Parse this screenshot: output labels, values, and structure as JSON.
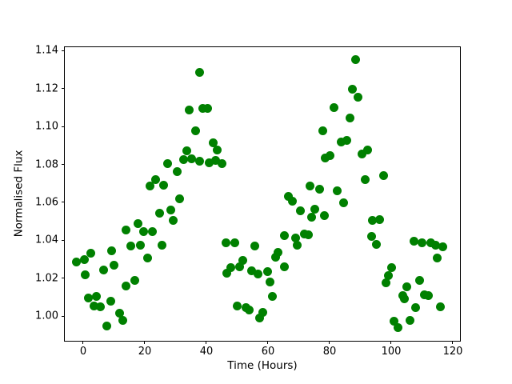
{
  "chart_data": {
    "type": "scatter",
    "title": "",
    "xlabel": "Time (Hours)",
    "ylabel": "Normalised Flux",
    "legend": null,
    "grid": false,
    "marker_color": "#008000",
    "marker_size_px": 11,
    "xlim": [
      -5.97,
      122.86
    ],
    "ylim": [
      0.9861,
      1.1421
    ],
    "x_ticks": [
      {
        "value": 0,
        "label": "0"
      },
      {
        "value": 20,
        "label": "20"
      },
      {
        "value": 40,
        "label": "40"
      },
      {
        "value": 60,
        "label": "60"
      },
      {
        "value": 80,
        "label": "80"
      },
      {
        "value": 100,
        "label": "100"
      },
      {
        "value": 120,
        "label": "120"
      }
    ],
    "y_ticks": [
      {
        "value": 1.0,
        "label": "1.00"
      },
      {
        "value": 1.02,
        "label": "1.02"
      },
      {
        "value": 1.04,
        "label": "1.04"
      },
      {
        "value": 1.06,
        "label": "1.06"
      },
      {
        "value": 1.08,
        "label": "1.08"
      },
      {
        "value": 1.1,
        "label": "1.10"
      },
      {
        "value": 1.12,
        "label": "1.12"
      },
      {
        "value": 1.14,
        "label": "1.14"
      }
    ],
    "points": [
      [
        -2.1,
        1.0285
      ],
      [
        0.4,
        1.0296
      ],
      [
        0.7,
        1.0216
      ],
      [
        1.7,
        1.0095
      ],
      [
        2.4,
        1.033
      ],
      [
        3.5,
        1.0055
      ],
      [
        4.4,
        1.0105
      ],
      [
        5.5,
        1.0049
      ],
      [
        6.6,
        1.0243
      ],
      [
        7.6,
        0.9947
      ],
      [
        9.0,
        1.0077
      ],
      [
        9.3,
        1.0346
      ],
      [
        10.1,
        1.027
      ],
      [
        11.7,
        1.0014
      ],
      [
        12.9,
        0.9979
      ],
      [
        13.8,
        1.0454
      ],
      [
        14.0,
        1.016
      ],
      [
        15.4,
        1.0371
      ],
      [
        16.7,
        1.019
      ],
      [
        17.8,
        1.0489
      ],
      [
        18.7,
        1.0374
      ],
      [
        19.6,
        1.0447
      ],
      [
        20.9,
        1.0306
      ],
      [
        21.6,
        1.0685
      ],
      [
        22.6,
        1.0447
      ],
      [
        23.5,
        1.0722
      ],
      [
        24.8,
        1.0541
      ],
      [
        25.5,
        1.0376
      ],
      [
        26.1,
        1.069
      ],
      [
        27.3,
        1.0806
      ],
      [
        28.5,
        1.0559
      ],
      [
        29.3,
        1.0503
      ],
      [
        30.4,
        1.0764
      ],
      [
        31.4,
        1.0619
      ],
      [
        32.7,
        1.0826
      ],
      [
        33.6,
        1.0872
      ],
      [
        34.3,
        1.1087
      ],
      [
        35.2,
        1.0831
      ],
      [
        36.4,
        1.0977
      ],
      [
        37.7,
        1.0816
      ],
      [
        37.8,
        1.1288
      ],
      [
        38.9,
        1.1096
      ],
      [
        40.3,
        1.1098
      ],
      [
        40.8,
        1.0809
      ],
      [
        42.1,
        1.0915
      ],
      [
        42.9,
        1.082
      ],
      [
        43.5,
        1.0876
      ],
      [
        45.1,
        1.0806
      ],
      [
        46.3,
        1.0386
      ],
      [
        46.6,
        1.0226
      ],
      [
        47.9,
        1.0257
      ],
      [
        49.1,
        1.0386
      ],
      [
        50.0,
        1.0053
      ],
      [
        50.7,
        1.026
      ],
      [
        51.9,
        1.0292
      ],
      [
        52.8,
        1.0046
      ],
      [
        53.9,
        1.0032
      ],
      [
        54.6,
        1.024
      ],
      [
        55.7,
        1.0368
      ],
      [
        56.8,
        1.0222
      ],
      [
        57.4,
        0.999
      ],
      [
        58.3,
        1.0021
      ],
      [
        60.0,
        1.0236
      ],
      [
        60.7,
        1.018
      ],
      [
        61.5,
        1.0103
      ],
      [
        62.6,
        1.0311
      ],
      [
        63.3,
        1.0335
      ],
      [
        65.2,
        1.026
      ],
      [
        65.2,
        1.0423
      ],
      [
        66.7,
        1.063
      ],
      [
        68.0,
        1.0605
      ],
      [
        68.9,
        1.0412
      ],
      [
        69.6,
        1.0373
      ],
      [
        70.4,
        1.0555
      ],
      [
        71.9,
        1.0433
      ],
      [
        73.2,
        1.0429
      ],
      [
        73.7,
        1.0686
      ],
      [
        74.2,
        1.052
      ],
      [
        75.3,
        1.0564
      ],
      [
        76.7,
        1.0668
      ],
      [
        77.8,
        1.0979
      ],
      [
        78.4,
        1.053
      ],
      [
        78.6,
        1.0835
      ],
      [
        80.2,
        1.0845
      ],
      [
        81.5,
        1.1101
      ],
      [
        82.5,
        1.0662
      ],
      [
        83.8,
        1.092
      ],
      [
        84.5,
        1.0598
      ],
      [
        85.5,
        1.0928
      ],
      [
        86.5,
        1.1045
      ],
      [
        87.5,
        1.1199
      ],
      [
        88.4,
        1.1352
      ],
      [
        89.3,
        1.1157
      ],
      [
        90.4,
        1.0855
      ],
      [
        91.6,
        1.0721
      ],
      [
        92.3,
        1.0876
      ],
      [
        93.6,
        1.0419
      ],
      [
        94.0,
        1.0503
      ],
      [
        95.3,
        1.0378
      ],
      [
        96.2,
        1.0508
      ],
      [
        97.5,
        1.074
      ],
      [
        98.2,
        1.0176
      ],
      [
        99.2,
        1.0215
      ],
      [
        100.1,
        1.0257
      ],
      [
        100.9,
        0.9973
      ],
      [
        102.1,
        0.9941
      ],
      [
        103.7,
        1.011
      ],
      [
        104.4,
        1.0091
      ],
      [
        105.0,
        1.0156
      ],
      [
        106.1,
        0.9979
      ],
      [
        107.3,
        1.0395
      ],
      [
        108.0,
        1.0043
      ],
      [
        109.2,
        1.0187
      ],
      [
        110.1,
        1.0388
      ],
      [
        110.9,
        1.0114
      ],
      [
        112.2,
        1.011
      ],
      [
        112.9,
        1.0385
      ],
      [
        114.3,
        1.0375
      ],
      [
        114.9,
        1.0307
      ],
      [
        116.1,
        1.0049
      ],
      [
        116.8,
        1.0365
      ]
    ]
  }
}
